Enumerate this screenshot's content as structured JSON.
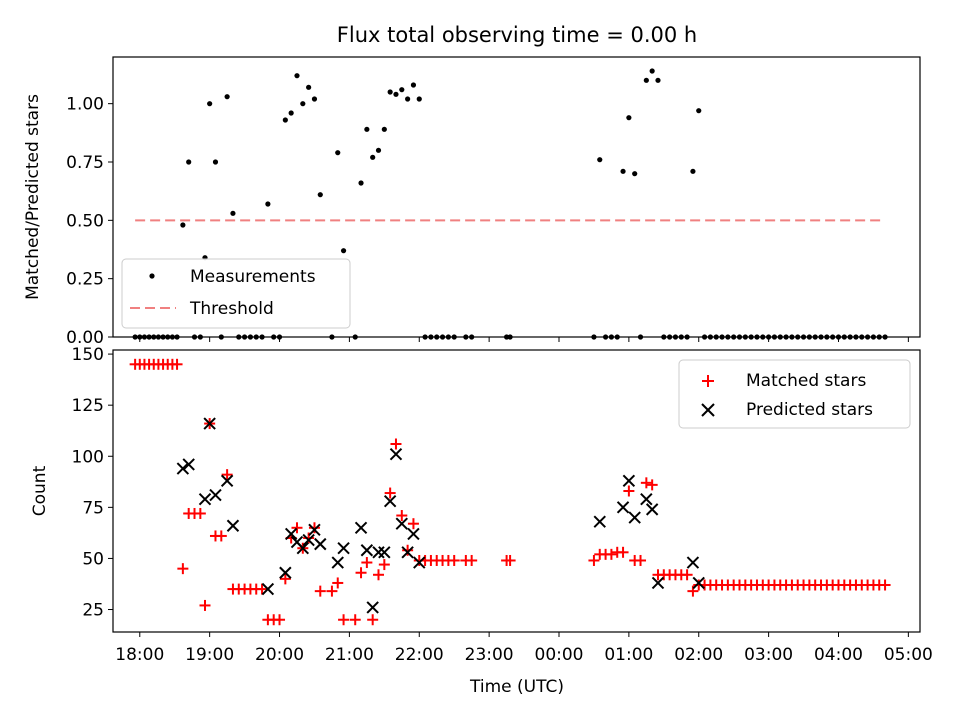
{
  "figure": {
    "title": "Flux total observing time = 0.00 h",
    "xlabel": "Time (UTC)"
  },
  "chart_data": [
    {
      "type": "scatter",
      "panel": "top",
      "ylabel": "Matched/Predicted stars",
      "xlim": [
        "17:37",
        "05:10"
      ],
      "ylim": [
        0,
        1.2
      ],
      "xticks": [
        "18:00",
        "19:00",
        "20:00",
        "21:00",
        "22:00",
        "23:00",
        "00:00",
        "01:00",
        "02:00",
        "03:00",
        "04:00",
        "05:00"
      ],
      "yticks": [
        "0.00",
        "0.25",
        "0.50",
        "0.75",
        "1.00"
      ],
      "legend_position": "lower-left",
      "series": [
        {
          "name": "Measurements",
          "color": "#000000",
          "marker": "dot",
          "points": [
            [
              "17:56",
              0
            ],
            [
              "18:00",
              0
            ],
            [
              "18:04",
              0
            ],
            [
              "18:08",
              0
            ],
            [
              "18:12",
              0
            ],
            [
              "18:16",
              0
            ],
            [
              "18:20",
              0
            ],
            [
              "18:24",
              0
            ],
            [
              "18:28",
              0
            ],
            [
              "18:32",
              0
            ],
            [
              "18:37",
              0.48
            ],
            [
              "18:42",
              0.75
            ],
            [
              "18:47",
              0
            ],
            [
              "18:52",
              0
            ],
            [
              "18:56",
              0.34
            ],
            [
              "19:00",
              1.0
            ],
            [
              "19:05",
              0.75
            ],
            [
              "19:10",
              0
            ],
            [
              "19:15",
              1.03
            ],
            [
              "19:20",
              0.53
            ],
            [
              "19:25",
              0
            ],
            [
              "19:30",
              0
            ],
            [
              "19:35",
              0
            ],
            [
              "19:40",
              0
            ],
            [
              "19:45",
              0
            ],
            [
              "19:50",
              0.57
            ],
            [
              "19:55",
              0
            ],
            [
              "20:00",
              0
            ],
            [
              "20:05",
              0.93
            ],
            [
              "20:10",
              0.96
            ],
            [
              "20:15",
              1.12
            ],
            [
              "20:20",
              1.0
            ],
            [
              "20:25",
              1.07
            ],
            [
              "20:30",
              1.02
            ],
            [
              "20:35",
              0.61
            ],
            [
              "20:45",
              0
            ],
            [
              "20:50",
              0.79
            ],
            [
              "20:55",
              0.37
            ],
            [
              "21:05",
              0
            ],
            [
              "21:10",
              0.66
            ],
            [
              "21:15",
              0.89
            ],
            [
              "21:20",
              0.77
            ],
            [
              "21:25",
              0.8
            ],
            [
              "21:30",
              0.89
            ],
            [
              "21:35",
              1.05
            ],
            [
              "21:40",
              1.04
            ],
            [
              "21:45",
              1.06
            ],
            [
              "21:50",
              1.02
            ],
            [
              "21:55",
              1.08
            ],
            [
              "22:00",
              1.02
            ],
            [
              "22:05",
              0
            ],
            [
              "22:10",
              0
            ],
            [
              "22:15",
              0
            ],
            [
              "22:20",
              0
            ],
            [
              "22:25",
              0
            ],
            [
              "22:30",
              0
            ],
            [
              "22:40",
              0
            ],
            [
              "22:45",
              0
            ],
            [
              "23:15",
              0
            ],
            [
              "23:18",
              0
            ],
            [
              "00:30",
              0
            ],
            [
              "00:35",
              0.76
            ],
            [
              "00:40",
              0
            ],
            [
              "00:45",
              0
            ],
            [
              "00:50",
              0
            ],
            [
              "00:55",
              0.71
            ],
            [
              "01:00",
              0.94
            ],
            [
              "01:05",
              0.7
            ],
            [
              "01:10",
              0
            ],
            [
              "01:15",
              1.1
            ],
            [
              "01:20",
              1.14
            ],
            [
              "01:25",
              1.1
            ],
            [
              "01:30",
              0
            ],
            [
              "01:35",
              0
            ],
            [
              "01:40",
              0
            ],
            [
              "01:45",
              0
            ],
            [
              "01:50",
              0
            ],
            [
              "01:55",
              0.71
            ],
            [
              "02:00",
              0.97
            ],
            [
              "02:05",
              0
            ],
            [
              "02:10",
              0
            ],
            [
              "02:15",
              0
            ],
            [
              "02:20",
              0
            ],
            [
              "02:25",
              0
            ],
            [
              "02:30",
              0
            ],
            [
              "02:35",
              0
            ],
            [
              "02:40",
              0
            ],
            [
              "02:45",
              0
            ],
            [
              "02:50",
              0
            ],
            [
              "02:55",
              0
            ],
            [
              "03:00",
              0
            ],
            [
              "03:05",
              0
            ],
            [
              "03:10",
              0
            ],
            [
              "03:15",
              0
            ],
            [
              "03:20",
              0
            ],
            [
              "03:25",
              0
            ],
            [
              "03:30",
              0
            ],
            [
              "03:35",
              0
            ],
            [
              "03:40",
              0
            ],
            [
              "03:45",
              0
            ],
            [
              "03:50",
              0
            ],
            [
              "03:55",
              0
            ],
            [
              "04:00",
              0
            ],
            [
              "04:05",
              0
            ],
            [
              "04:10",
              0
            ],
            [
              "04:15",
              0
            ],
            [
              "04:20",
              0
            ],
            [
              "04:25",
              0
            ],
            [
              "04:30",
              0
            ],
            [
              "04:35",
              0
            ],
            [
              "04:40",
              0
            ]
          ]
        },
        {
          "name": "Threshold",
          "color": "#f08080",
          "style": "dashed-line",
          "points": [
            [
              "17:56",
              0.5
            ],
            [
              "04:40",
              0.5
            ]
          ]
        }
      ]
    },
    {
      "type": "scatter",
      "panel": "bottom",
      "ylabel": "Count",
      "xlim": [
        "17:37",
        "05:10"
      ],
      "ylim": [
        14,
        152
      ],
      "xticks": [
        "18:00",
        "19:00",
        "20:00",
        "21:00",
        "22:00",
        "23:00",
        "00:00",
        "01:00",
        "02:00",
        "03:00",
        "04:00",
        "05:00"
      ],
      "yticks": [
        "25",
        "50",
        "75",
        "100",
        "125",
        "150"
      ],
      "legend_position": "upper-right",
      "series": [
        {
          "name": "Matched stars",
          "color": "#ff0000",
          "marker": "plus",
          "points": [
            [
              "17:56",
              145
            ],
            [
              "18:00",
              145
            ],
            [
              "18:04",
              145
            ],
            [
              "18:08",
              145
            ],
            [
              "18:12",
              145
            ],
            [
              "18:16",
              145
            ],
            [
              "18:20",
              145
            ],
            [
              "18:24",
              145
            ],
            [
              "18:28",
              145
            ],
            [
              "18:32",
              145
            ],
            [
              "18:37",
              45
            ],
            [
              "18:42",
              72
            ],
            [
              "18:47",
              72
            ],
            [
              "18:52",
              72
            ],
            [
              "18:56",
              27
            ],
            [
              "19:00",
              116
            ],
            [
              "19:05",
              61
            ],
            [
              "19:10",
              61
            ],
            [
              "19:15",
              91
            ],
            [
              "19:20",
              35
            ],
            [
              "19:25",
              35
            ],
            [
              "19:30",
              35
            ],
            [
              "19:35",
              35
            ],
            [
              "19:40",
              35
            ],
            [
              "19:45",
              35
            ],
            [
              "19:50",
              20
            ],
            [
              "19:55",
              20
            ],
            [
              "20:00",
              20
            ],
            [
              "20:05",
              40
            ],
            [
              "20:10",
              60
            ],
            [
              "20:15",
              65
            ],
            [
              "20:20",
              55
            ],
            [
              "20:25",
              60
            ],
            [
              "20:30",
              65
            ],
            [
              "20:35",
              34
            ],
            [
              "20:45",
              34
            ],
            [
              "20:50",
              38
            ],
            [
              "20:55",
              20
            ],
            [
              "21:05",
              20
            ],
            [
              "21:10",
              43
            ],
            [
              "21:15",
              48
            ],
            [
              "21:20",
              20
            ],
            [
              "21:25",
              42
            ],
            [
              "21:30",
              47
            ],
            [
              "21:35",
              82
            ],
            [
              "21:40",
              106
            ],
            [
              "21:45",
              71
            ],
            [
              "21:50",
              54
            ],
            [
              "21:55",
              67
            ],
            [
              "22:00",
              49
            ],
            [
              "22:05",
              49
            ],
            [
              "22:10",
              49
            ],
            [
              "22:15",
              49
            ],
            [
              "22:20",
              49
            ],
            [
              "22:25",
              49
            ],
            [
              "22:30",
              49
            ],
            [
              "22:40",
              49
            ],
            [
              "22:45",
              49
            ],
            [
              "23:15",
              49
            ],
            [
              "23:18",
              49
            ],
            [
              "00:30",
              49
            ],
            [
              "00:35",
              52
            ],
            [
              "00:40",
              52
            ],
            [
              "00:45",
              52
            ],
            [
              "00:50",
              53
            ],
            [
              "00:55",
              53
            ],
            [
              "01:00",
              83
            ],
            [
              "01:05",
              49
            ],
            [
              "01:10",
              49
            ],
            [
              "01:15",
              87
            ],
            [
              "01:20",
              86
            ],
            [
              "01:25",
              42
            ],
            [
              "01:30",
              42
            ],
            [
              "01:35",
              42
            ],
            [
              "01:40",
              42
            ],
            [
              "01:45",
              42
            ],
            [
              "01:50",
              42
            ],
            [
              "01:55",
              34
            ],
            [
              "02:00",
              37
            ],
            [
              "02:05",
              37
            ],
            [
              "02:10",
              37
            ],
            [
              "02:15",
              37
            ],
            [
              "02:20",
              37
            ],
            [
              "02:25",
              37
            ],
            [
              "02:30",
              37
            ],
            [
              "02:35",
              37
            ],
            [
              "02:40",
              37
            ],
            [
              "02:45",
              37
            ],
            [
              "02:50",
              37
            ],
            [
              "02:55",
              37
            ],
            [
              "03:00",
              37
            ],
            [
              "03:05",
              37
            ],
            [
              "03:10",
              37
            ],
            [
              "03:15",
              37
            ],
            [
              "03:20",
              37
            ],
            [
              "03:25",
              37
            ],
            [
              "03:30",
              37
            ],
            [
              "03:35",
              37
            ],
            [
              "03:40",
              37
            ],
            [
              "03:45",
              37
            ],
            [
              "03:50",
              37
            ],
            [
              "03:55",
              37
            ],
            [
              "04:00",
              37
            ],
            [
              "04:05",
              37
            ],
            [
              "04:10",
              37
            ],
            [
              "04:15",
              37
            ],
            [
              "04:20",
              37
            ],
            [
              "04:25",
              37
            ],
            [
              "04:30",
              37
            ],
            [
              "04:35",
              37
            ],
            [
              "04:40",
              37
            ]
          ]
        },
        {
          "name": "Predicted stars",
          "color": "#000000",
          "marker": "x",
          "points": [
            [
              "18:37",
              94
            ],
            [
              "18:42",
              96
            ],
            [
              "18:56",
              79
            ],
            [
              "19:00",
              116
            ],
            [
              "19:05",
              81
            ],
            [
              "19:15",
              88
            ],
            [
              "19:20",
              66
            ],
            [
              "19:50",
              35
            ],
            [
              "20:05",
              43
            ],
            [
              "20:10",
              62
            ],
            [
              "20:15",
              58
            ],
            [
              "20:20",
              55
            ],
            [
              "20:25",
              59
            ],
            [
              "20:30",
              64
            ],
            [
              "20:35",
              57
            ],
            [
              "20:50",
              48
            ],
            [
              "20:55",
              55
            ],
            [
              "21:10",
              65
            ],
            [
              "21:15",
              54
            ],
            [
              "21:20",
              26
            ],
            [
              "21:25",
              53
            ],
            [
              "21:30",
              53
            ],
            [
              "21:35",
              78
            ],
            [
              "21:40",
              101
            ],
            [
              "21:45",
              67
            ],
            [
              "21:50",
              53
            ],
            [
              "21:55",
              62
            ],
            [
              "22:00",
              48
            ],
            [
              "00:35",
              68
            ],
            [
              "00:55",
              75
            ],
            [
              "01:00",
              88
            ],
            [
              "01:05",
              70
            ],
            [
              "01:15",
              79
            ],
            [
              "01:20",
              74
            ],
            [
              "01:25",
              38
            ],
            [
              "01:55",
              48
            ],
            [
              "02:00",
              38
            ]
          ]
        }
      ]
    }
  ]
}
